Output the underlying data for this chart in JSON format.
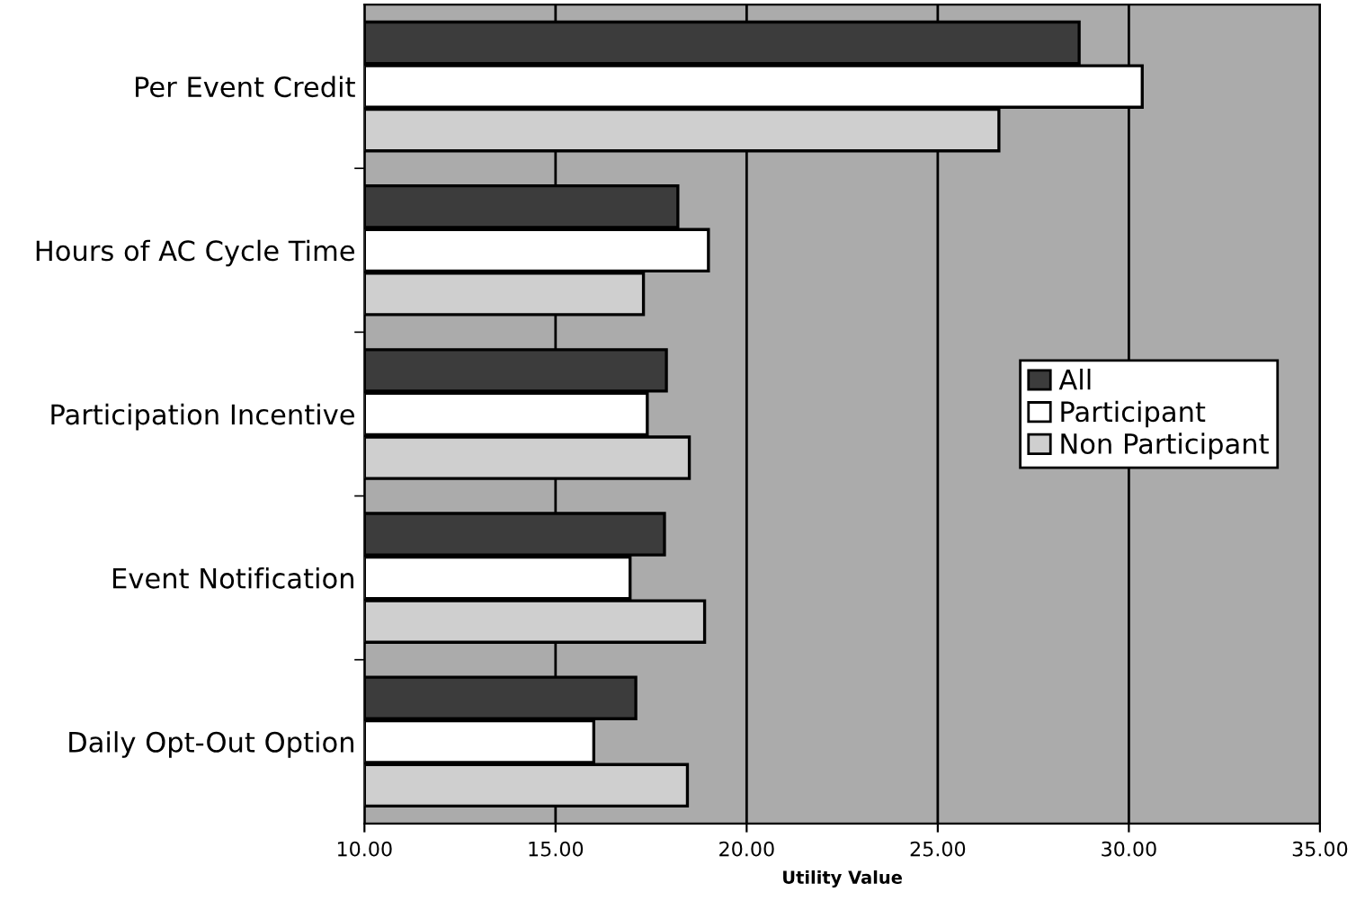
{
  "chart_data": {
    "type": "bar",
    "orientation": "horizontal",
    "xlabel": "Utility Value",
    "categories": [
      "Per Event Credit",
      "Hours of AC Cycle Time",
      "Participation Incentive",
      "Event Notification",
      "Daily Opt-Out Option"
    ],
    "series": [
      {
        "name": "All",
        "color": "#3c3c3c",
        "values": [
          28.7,
          18.2,
          17.9,
          17.85,
          17.1
        ]
      },
      {
        "name": "Participant",
        "color": "#ffffff",
        "values": [
          30.35,
          19.0,
          17.4,
          16.95,
          16.0
        ]
      },
      {
        "name": "Non Participant",
        "color": "#cfcfcf",
        "values": [
          26.6,
          17.3,
          18.5,
          18.9,
          18.45
        ]
      }
    ],
    "xlim": [
      10,
      35
    ],
    "xticks": [
      {
        "value": 10,
        "label": "10.00"
      },
      {
        "value": 15,
        "label": "15.00"
      },
      {
        "value": 20,
        "label": "20.00"
      },
      {
        "value": 25,
        "label": "25.00"
      },
      {
        "value": 30,
        "label": "30.00"
      },
      {
        "value": 35,
        "label": "35.00"
      }
    ],
    "grid": "x",
    "legend": "right"
  }
}
